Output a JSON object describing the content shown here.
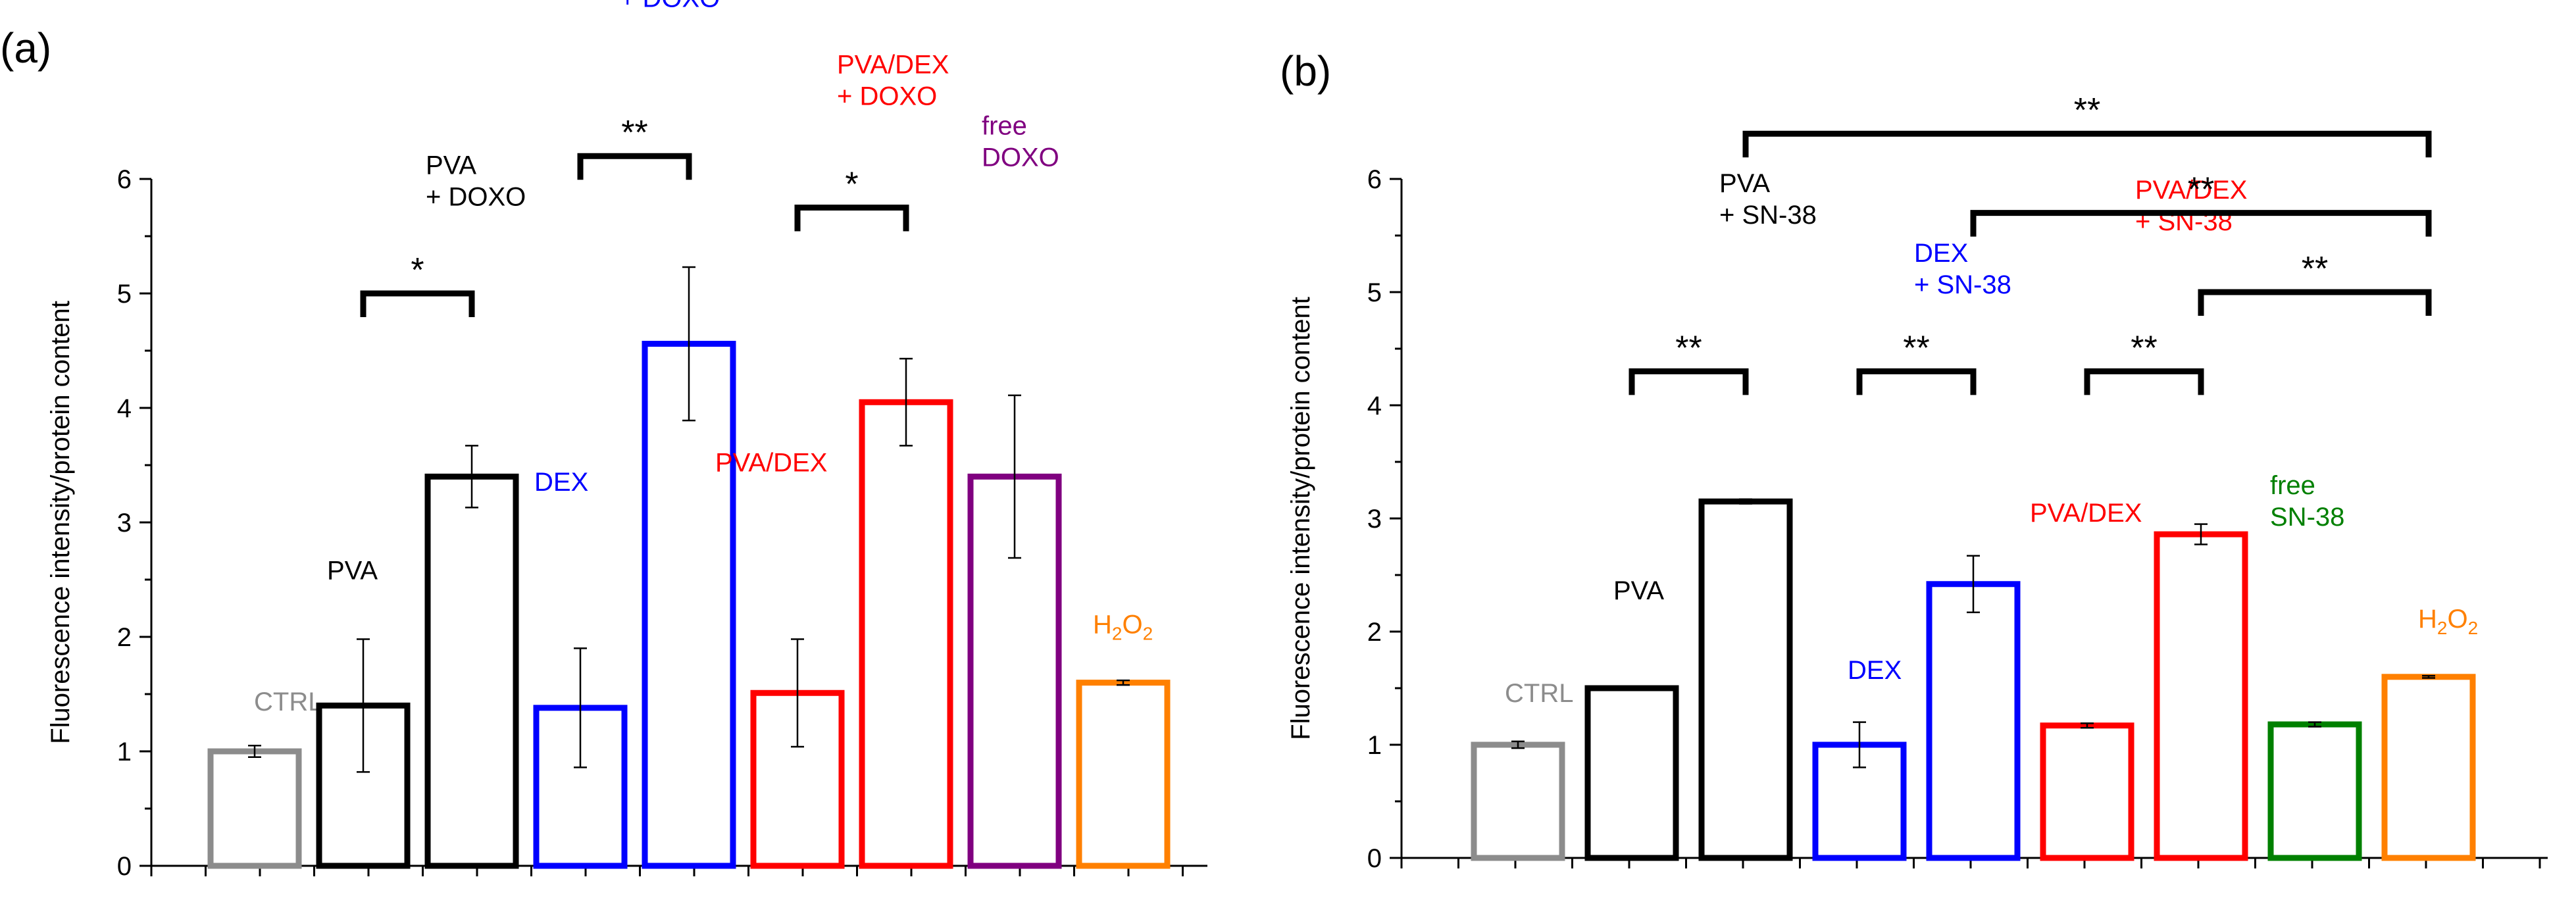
{
  "chart_data": [
    {
      "panel": "(a)",
      "type": "bar",
      "ylabel": "Fluorescence intensity/protein content",
      "ylim": [
        0,
        6
      ],
      "yticks": [
        "0",
        "1",
        "2",
        "3",
        "4",
        "5",
        "6"
      ],
      "bars": [
        {
          "name": "CTRL",
          "lines": [
            "CTRL"
          ],
          "value": 1.0,
          "err": 0.05,
          "color": "#8c8c8c"
        },
        {
          "name": "PVA",
          "lines": [
            "PVA"
          ],
          "value": 1.4,
          "err": 0.58,
          "color": "#000000"
        },
        {
          "name": "PVA + DOXO",
          "lines": [
            "PVA",
            "+ DOXO"
          ],
          "value": 3.4,
          "err": 0.27,
          "color": "#000000"
        },
        {
          "name": "DEX",
          "lines": [
            "DEX"
          ],
          "value": 1.38,
          "err": 0.52,
          "color": "#0000ff"
        },
        {
          "name": "DEX + DOXO",
          "lines": [
            "DEX",
            "+ DOXO"
          ],
          "value": 4.56,
          "err": 0.67,
          "color": "#0000ff"
        },
        {
          "name": "PVA/DEX",
          "lines": [
            "PVA/DEX"
          ],
          "value": 1.51,
          "err": 0.47,
          "color": "#ff0000"
        },
        {
          "name": "PVA/DEX + DOXO",
          "lines": [
            "PVA/DEX",
            "+ DOXO"
          ],
          "value": 4.05,
          "err": 0.38,
          "color": "#ff0000"
        },
        {
          "name": "free DOXO",
          "lines": [
            "free",
            "DOXO"
          ],
          "value": 3.4,
          "err": 0.71,
          "color": "#800080"
        },
        {
          "name": "H2O2",
          "lines": [
            "H2O2"
          ],
          "value": 1.6,
          "err": 0.02,
          "color": "#ff8000"
        }
      ],
      "significance": [
        {
          "from": 1,
          "to": 2,
          "label": "*",
          "level": 5.0
        },
        {
          "from": 3,
          "to": 4,
          "label": "**",
          "level": 6.2
        },
        {
          "from": 5,
          "to": 6,
          "label": "*",
          "level": 5.75
        }
      ]
    },
    {
      "panel": "(b)",
      "type": "bar",
      "ylabel": "Fluorescence intensity/protein content",
      "ylim": [
        0,
        6
      ],
      "yticks": [
        "0",
        "1",
        "2",
        "3",
        "4",
        "5",
        "6"
      ],
      "bars": [
        {
          "name": "CTRL",
          "lines": [
            "CTRL"
          ],
          "value": 1.0,
          "err": 0.03,
          "color": "#8c8c8c"
        },
        {
          "name": "PVA",
          "lines": [
            "PVA"
          ],
          "value": 1.5,
          "err": 0.0,
          "color": "#000000"
        },
        {
          "name": "PVA + SN-38",
          "lines": [
            "PVA",
            "+ SN-38"
          ],
          "value": 3.15,
          "err": 0.02,
          "color": "#000000"
        },
        {
          "name": "DEX",
          "lines": [
            "DEX"
          ],
          "value": 1.0,
          "err": 0.2,
          "color": "#0000ff"
        },
        {
          "name": "DEX + SN-38",
          "lines": [
            "DEX",
            "+ SN-38"
          ],
          "value": 2.42,
          "err": 0.25,
          "color": "#0000ff"
        },
        {
          "name": "PVA/DEX",
          "lines": [
            "PVA/DEX"
          ],
          "value": 1.17,
          "err": 0.02,
          "color": "#ff0000"
        },
        {
          "name": "PVA/DEX + SN-38",
          "lines": [
            "PVA/DEX",
            "+ SN-38"
          ],
          "value": 2.86,
          "err": 0.09,
          "color": "#ff0000"
        },
        {
          "name": "free SN-38",
          "lines": [
            "free",
            "SN-38"
          ],
          "value": 1.18,
          "err": 0.02,
          "color": "#008000"
        },
        {
          "name": "H2O2",
          "lines": [
            "H2O2"
          ],
          "value": 1.6,
          "err": 0.01,
          "color": "#ff8000"
        }
      ],
      "significance": [
        {
          "from": 1,
          "to": 2,
          "label": "**",
          "level": 4.3
        },
        {
          "from": 3,
          "to": 4,
          "label": "**",
          "level": 4.3
        },
        {
          "from": 5,
          "to": 6,
          "label": "**",
          "level": 4.3
        },
        {
          "from": 6,
          "to": 8,
          "label": "**",
          "level": 5.0
        },
        {
          "from": 4,
          "to": 8,
          "label": "**",
          "level": 5.7
        },
        {
          "from": 2,
          "to": 8,
          "label": "**",
          "level": 6.4
        }
      ]
    }
  ]
}
